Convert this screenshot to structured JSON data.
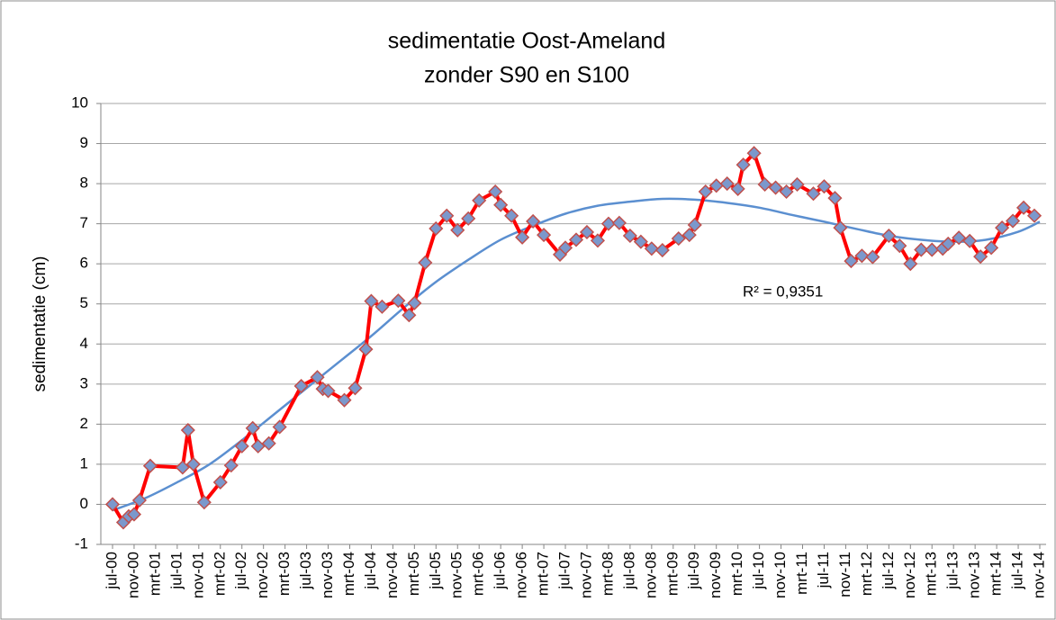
{
  "chart_data": {
    "type": "line",
    "title": "sedimentatie Oost-Ameland",
    "subtitle": "zonder S90 en S100",
    "y_label": "sedimentatie (cm)",
    "annotation": "R² = 0,9351",
    "grid": true,
    "ylim": [
      -1,
      10
    ],
    "yticks": [
      -1,
      0,
      1,
      2,
      3,
      4,
      5,
      6,
      7,
      8,
      9,
      10
    ],
    "xlim": [
      "2000-07",
      "2014-11"
    ],
    "xticks": [
      {
        "value": "2000-07",
        "label": "jul-00"
      },
      {
        "value": "2000-11",
        "label": "nov-00"
      },
      {
        "value": "2001-03",
        "label": "mrt-01"
      },
      {
        "value": "2001-07",
        "label": "jul-01"
      },
      {
        "value": "2001-11",
        "label": "nov-01"
      },
      {
        "value": "2002-03",
        "label": "mrt-02"
      },
      {
        "value": "2002-07",
        "label": "jul-02"
      },
      {
        "value": "2002-11",
        "label": "nov-02"
      },
      {
        "value": "2003-03",
        "label": "mrt-03"
      },
      {
        "value": "2003-07",
        "label": "jul-03"
      },
      {
        "value": "2003-11",
        "label": "nov-03"
      },
      {
        "value": "2004-03",
        "label": "mrt-04"
      },
      {
        "value": "2004-07",
        "label": "jul-04"
      },
      {
        "value": "2004-11",
        "label": "nov-04"
      },
      {
        "value": "2005-03",
        "label": "mrt-05"
      },
      {
        "value": "2005-07",
        "label": "jul-05"
      },
      {
        "value": "2005-11",
        "label": "nov-05"
      },
      {
        "value": "2006-03",
        "label": "mrt-06"
      },
      {
        "value": "2006-07",
        "label": "jul-06"
      },
      {
        "value": "2006-11",
        "label": "nov-06"
      },
      {
        "value": "2007-03",
        "label": "mrt-07"
      },
      {
        "value": "2007-07",
        "label": "jul-07"
      },
      {
        "value": "2007-11",
        "label": "nov-07"
      },
      {
        "value": "2008-03",
        "label": "mrt-08"
      },
      {
        "value": "2008-07",
        "label": "jul-08"
      },
      {
        "value": "2008-11",
        "label": "nov-08"
      },
      {
        "value": "2009-03",
        "label": "mrt-09"
      },
      {
        "value": "2009-07",
        "label": "jul-09"
      },
      {
        "value": "2009-11",
        "label": "nov-09"
      },
      {
        "value": "2010-03",
        "label": "mrt-10"
      },
      {
        "value": "2010-07",
        "label": "jul-10"
      },
      {
        "value": "2010-11",
        "label": "nov-10"
      },
      {
        "value": "2011-03",
        "label": "mrt-11"
      },
      {
        "value": "2011-07",
        "label": "jul-11"
      },
      {
        "value": "2011-11",
        "label": "nov-11"
      },
      {
        "value": "2012-03",
        "label": "mrt-12"
      },
      {
        "value": "2012-07",
        "label": "jul-12"
      },
      {
        "value": "2012-11",
        "label": "nov-12"
      },
      {
        "value": "2013-03",
        "label": "mrt-13"
      },
      {
        "value": "2013-07",
        "label": "jul-13"
      },
      {
        "value": "2013-11",
        "label": "nov-13"
      },
      {
        "value": "2014-03",
        "label": "mrt-14"
      },
      {
        "value": "2014-07",
        "label": "jul-14"
      },
      {
        "value": "2014-11",
        "label": "nov-14"
      }
    ],
    "x": [
      "2000-07",
      "2000-09",
      "2000-10",
      "2000-11",
      "2000-12",
      "2001-02",
      "2001-08",
      "2001-09",
      "2001-10",
      "2001-12",
      "2002-03",
      "2002-05",
      "2002-07",
      "2002-09",
      "2002-10",
      "2002-12",
      "2003-02",
      "2003-06",
      "2003-09",
      "2003-10",
      "2003-11",
      "2004-02",
      "2004-04",
      "2004-06",
      "2004-07",
      "2004-09",
      "2004-12",
      "2005-02",
      "2005-03",
      "2005-05",
      "2005-07",
      "2005-09",
      "2005-11",
      "2006-01",
      "2006-03",
      "2006-06",
      "2006-07",
      "2006-09",
      "2006-11",
      "2007-01",
      "2007-03",
      "2007-06",
      "2007-07",
      "2007-09",
      "2007-11",
      "2008-01",
      "2008-03",
      "2008-05",
      "2008-07",
      "2008-09",
      "2008-11",
      "2009-01",
      "2009-04",
      "2009-06",
      "2009-07",
      "2009-09",
      "2009-11",
      "2010-01",
      "2010-03",
      "2010-04",
      "2010-06",
      "2010-08",
      "2010-10",
      "2010-12",
      "2011-02",
      "2011-05",
      "2011-07",
      "2011-09",
      "2011-10",
      "2011-12",
      "2012-02",
      "2012-04",
      "2012-07",
      "2012-09",
      "2012-11",
      "2013-01",
      "2013-03",
      "2013-05",
      "2013-06",
      "2013-08",
      "2013-10",
      "2013-12",
      "2014-02",
      "2014-04",
      "2014-06",
      "2014-08",
      "2014-10"
    ],
    "series": [
      {
        "color": "#ff0000",
        "marker_color": "#7b98cc",
        "values": [
          0,
          -0.45,
          -0.3,
          -0.25,
          0.1,
          0.96,
          0.92,
          1.85,
          1.0,
          0.05,
          0.55,
          0.97,
          1.45,
          1.9,
          1.45,
          1.52,
          1.93,
          2.95,
          3.17,
          2.88,
          2.83,
          2.6,
          2.9,
          3.87,
          5.07,
          4.93,
          5.08,
          4.72,
          5.02,
          6.03,
          6.88,
          7.2,
          6.84,
          7.13,
          7.58,
          7.8,
          7.47,
          7.2,
          6.66,
          7.06,
          6.72,
          6.23,
          6.4,
          6.6,
          6.79,
          6.58,
          7.0,
          7.02,
          6.7,
          6.55,
          6.38,
          6.34,
          6.63,
          6.72,
          6.97,
          7.8,
          7.95,
          8.0,
          7.87,
          8.47,
          8.76,
          7.98,
          7.9,
          7.8,
          7.98,
          7.75,
          7.93,
          7.64,
          6.9,
          6.07,
          6.2,
          6.17,
          6.7,
          6.45,
          6.0,
          6.35,
          6.35,
          6.38,
          6.5,
          6.65,
          6.57,
          6.18,
          6.4,
          6.9,
          7.07,
          7.4,
          7.2
        ]
      }
    ],
    "trendline": {
      "color": "#5b8fd0",
      "x": [
        "2000-07",
        "2001-01",
        "2001-07",
        "2002-01",
        "2002-07",
        "2003-01",
        "2003-07",
        "2004-01",
        "2004-07",
        "2005-01",
        "2005-07",
        "2006-01",
        "2006-07",
        "2007-01",
        "2007-07",
        "2008-01",
        "2008-07",
        "2009-01",
        "2009-07",
        "2010-01",
        "2010-07",
        "2011-01",
        "2011-07",
        "2012-01",
        "2012-07",
        "2013-01",
        "2013-07",
        "2014-01",
        "2014-07",
        "2014-11"
      ],
      "values": [
        -0.15,
        0.15,
        0.55,
        1.0,
        1.6,
        2.25,
        2.9,
        3.55,
        4.2,
        4.9,
        5.55,
        6.1,
        6.6,
        6.95,
        7.25,
        7.45,
        7.55,
        7.62,
        7.6,
        7.52,
        7.4,
        7.22,
        7.05,
        6.87,
        6.7,
        6.6,
        6.55,
        6.6,
        6.8,
        7.05
      ]
    }
  }
}
